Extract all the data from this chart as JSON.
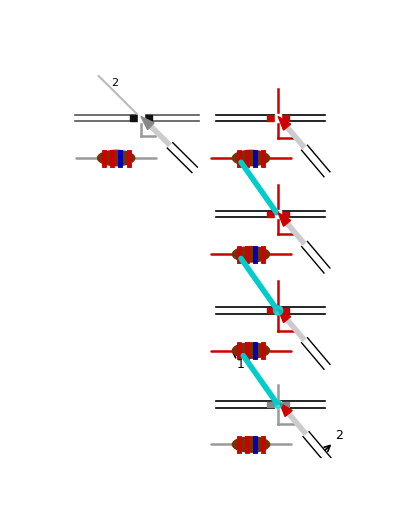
{
  "bg_color": "#ffffff",
  "resistor_body_color": "#7B3000",
  "stripe_colors": [
    "#cc0000",
    "#cc0000",
    "#0000bb",
    "#cc0000"
  ],
  "wire_gray": "#999999",
  "wire_red": "#cc0000",
  "iron_red": "#cc0000",
  "solder_cyan": "#00cccc",
  "pcb_black": "#000000",
  "pad_black": "#111111",
  "pad_red": "#cc0000",
  "pad_gray": "#888888",
  "iron_gray": "#aaaaaa",
  "handle_black": "#000000"
}
